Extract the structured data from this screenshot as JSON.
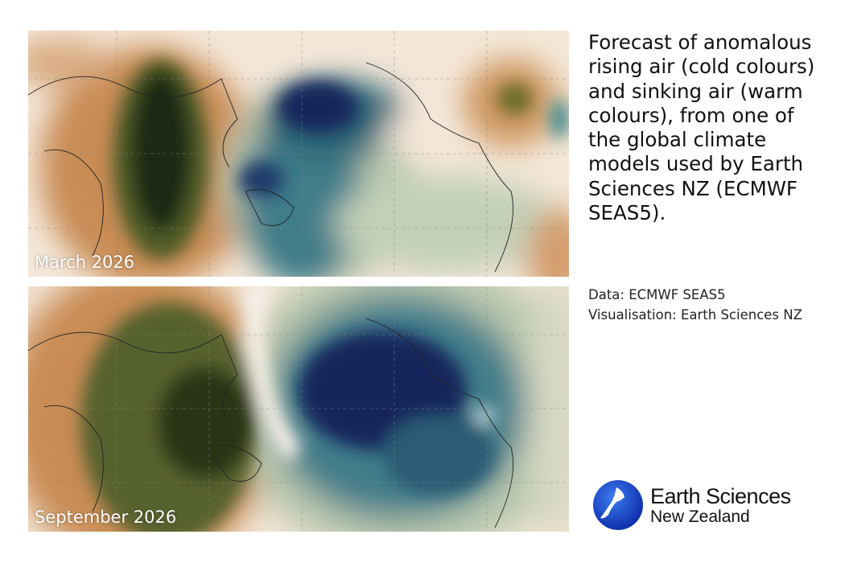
{
  "maps": [
    {
      "label": "March 2026"
    },
    {
      "label": "September 2026"
    }
  ],
  "description": "Forecast of anomalous rising air (cold colours) and sinking air (warm colours), from one of the global climate models used by Earth Sciences NZ (ECMWF SEAS5).",
  "credits": [
    "Data: ECMWF SEAS5",
    "Visualisation: Earth Sciences NZ"
  ],
  "logo": {
    "line1": "Earth Sciences",
    "line2": "New Zealand"
  }
}
